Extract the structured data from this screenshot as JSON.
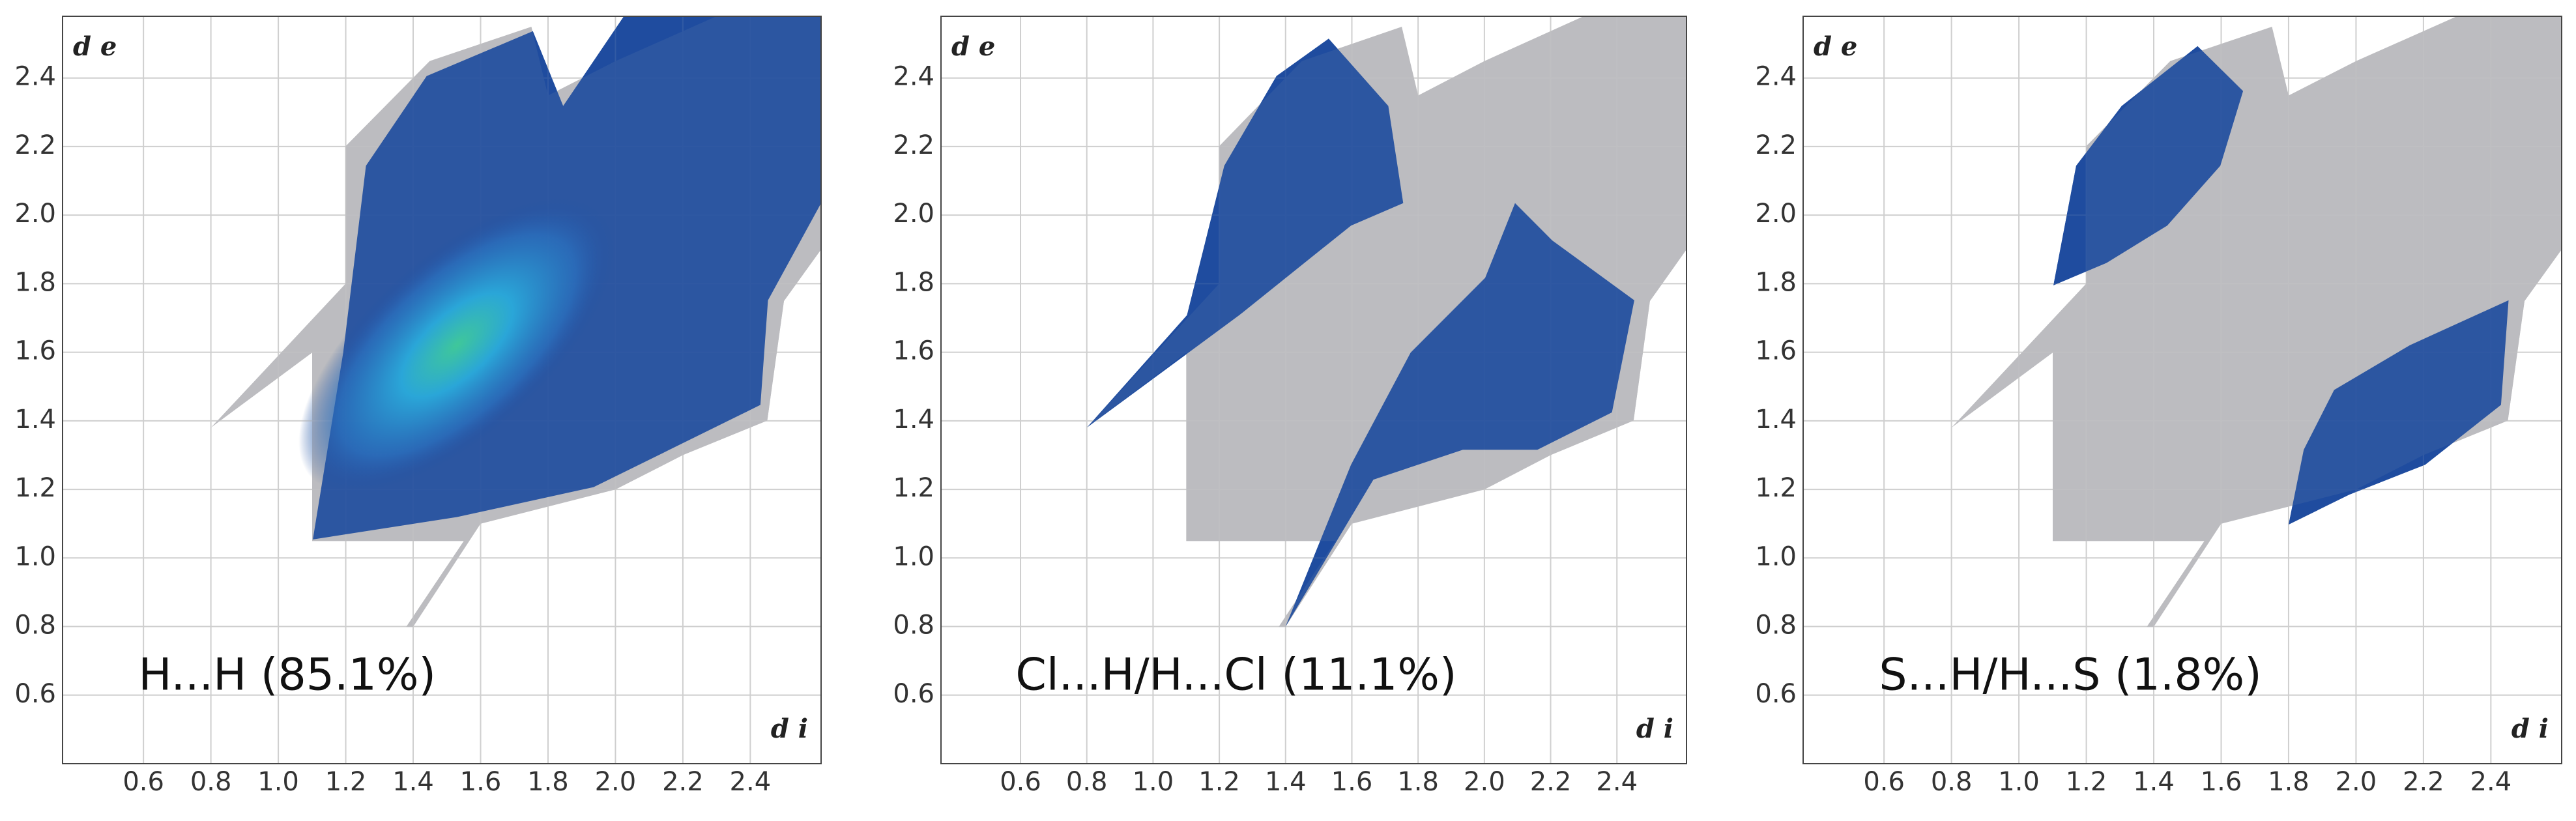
{
  "chart_data": [
    {
      "type": "fingerprint",
      "annotation": "H...H (85.1%)",
      "xlabel": "d i",
      "ylabel": "d e",
      "xlim": [
        0.36,
        2.61
      ],
      "ylim": [
        0.4,
        2.58
      ],
      "xticks": [
        0.6,
        0.8,
        {
          "value": 1,
          "label": "1.0"
        },
        1.2,
        1.4,
        1.6,
        1.8,
        {
          "value": 2,
          "label": "2.0"
        },
        2.2,
        2.4
      ],
      "yticks": [
        0.6,
        0.8,
        {
          "value": 1,
          "label": "1.0"
        },
        1.2,
        1.4,
        1.6,
        1.8,
        {
          "value": 2,
          "label": "2.0"
        },
        2.2,
        2.4
      ],
      "grid": true,
      "color": "#1f4c9e",
      "background_color": "#bcbcbf"
    },
    {
      "type": "fingerprint",
      "annotation": "Cl...H/H...Cl (11.1%)",
      "xlabel": "d i",
      "ylabel": "d e",
      "xlim": [
        0.36,
        2.61
      ],
      "ylim": [
        0.4,
        2.58
      ],
      "xticks": [
        0.6,
        0.8,
        {
          "value": 1,
          "label": "1.0"
        },
        1.2,
        1.4,
        1.6,
        1.8,
        {
          "value": 2,
          "label": "2.0"
        },
        2.2,
        2.4
      ],
      "yticks": [
        0.6,
        0.8,
        {
          "value": 1,
          "label": "1.0"
        },
        1.2,
        1.4,
        1.6,
        1.8,
        {
          "value": 2,
          "label": "2.0"
        },
        2.2,
        2.4
      ],
      "grid": true,
      "color": "#1f4c9e",
      "background_color": "#bcbcbf"
    },
    {
      "type": "fingerprint",
      "annotation": "S...H/H...S (1.8%)",
      "xlabel": "d i",
      "ylabel": "d e",
      "xlim": [
        0.36,
        2.61
      ],
      "ylim": [
        0.4,
        2.58
      ],
      "xticks": [
        0.6,
        0.8,
        {
          "value": 1,
          "label": "1.0"
        },
        1.2,
        1.4,
        1.6,
        1.8,
        {
          "value": 2,
          "label": "2.0"
        },
        2.2,
        2.4
      ],
      "yticks": [
        0.6,
        0.8,
        {
          "value": 1,
          "label": "1.0"
        },
        1.2,
        1.4,
        1.6,
        1.8,
        {
          "value": 2,
          "label": "2.0"
        },
        2.2,
        2.4
      ],
      "grid": true,
      "color": "#1f4c9e",
      "background_color": "#bcbcbf"
    }
  ]
}
